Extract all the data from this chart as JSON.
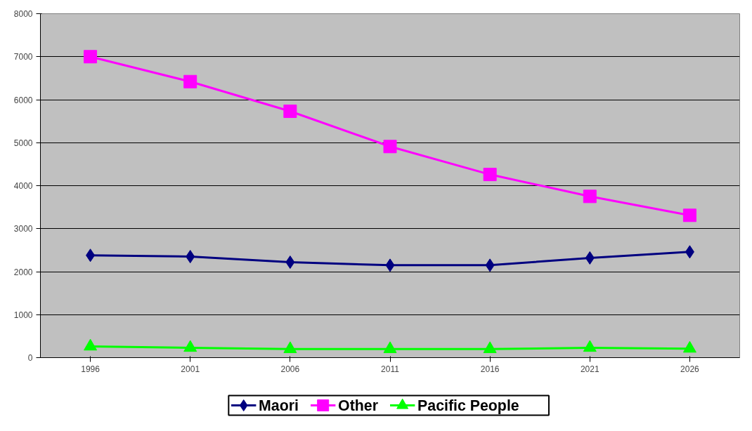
{
  "chart_data": {
    "type": "line",
    "categories": [
      "1996",
      "2001",
      "2006",
      "2011",
      "2016",
      "2021",
      "2026"
    ],
    "series": [
      {
        "name": "Maori",
        "color": "#000080",
        "marker": "diamond",
        "values": [
          2380,
          2350,
          2220,
          2150,
          2150,
          2320,
          2460
        ]
      },
      {
        "name": "Other",
        "color": "#ff00ff",
        "marker": "square",
        "values": [
          7000,
          6420,
          5730,
          4910,
          4260,
          3750,
          3310
        ]
      },
      {
        "name": "Pacific People",
        "color": "#00ff00",
        "marker": "triangle",
        "values": [
          260,
          230,
          200,
          200,
          200,
          230,
          210
        ]
      }
    ],
    "ylim": [
      0,
      8000
    ],
    "yticks": [
      0,
      1000,
      2000,
      3000,
      4000,
      5000,
      6000,
      7000,
      8000
    ],
    "grid": "y",
    "legend": "bottom",
    "line_style": "solid"
  }
}
